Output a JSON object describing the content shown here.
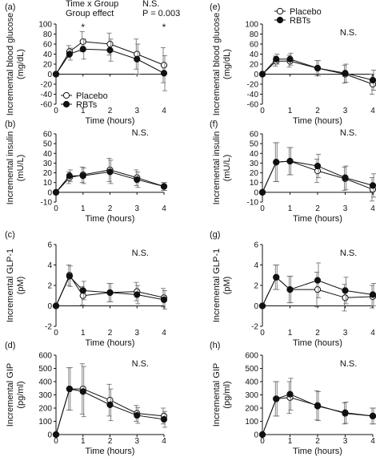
{
  "chart_data": [
    {
      "type": "line",
      "panel_label": "(a)",
      "ylabel": "Incremental blood glucose (mg/dL)",
      "xlabel": "Time (hours)",
      "ylim": [
        -60,
        100
      ],
      "yticks": [
        -60,
        -40,
        -20,
        0,
        20,
        40,
        60,
        80,
        100
      ],
      "xlim": [
        0,
        4
      ],
      "xticks": [
        0,
        1,
        2,
        3,
        4
      ],
      "x": [
        0,
        0.5,
        1,
        2,
        3,
        4
      ],
      "series": [
        {
          "name": "Placebo",
          "marker": "open-circle",
          "values": [
            0,
            45,
            65,
            60,
            40,
            18
          ],
          "errors": [
            0,
            12,
            20,
            22,
            30,
            35
          ]
        },
        {
          "name": "RBTs",
          "marker": "filled-circle",
          "values": [
            0,
            40,
            50,
            48,
            30,
            2
          ],
          "errors": [
            0,
            12,
            20,
            22,
            30,
            35
          ]
        }
      ],
      "stats": {
        "lines": [
          [
            "Time x Group",
            "N.S."
          ],
          [
            "Group effect",
            "P = 0.003"
          ]
        ]
      },
      "star_labels": [
        {
          "x": 1,
          "text": "*"
        },
        {
          "x": 4,
          "text": "*"
        }
      ],
      "legend": {
        "position": "bottom-left",
        "entries": [
          "Placebo",
          "RBTs"
        ]
      }
    },
    {
      "type": "line",
      "panel_label": "(b)",
      "ylabel": "Incremental insulin (mU/L)",
      "xlabel": "Time (hours)",
      "ylim": [
        -10,
        60
      ],
      "yticks": [
        -10,
        0,
        10,
        20,
        30,
        40,
        50,
        60
      ],
      "xlim": [
        0,
        4
      ],
      "xticks": [
        0,
        1,
        2,
        3,
        4
      ],
      "x": [
        0,
        0.5,
        1,
        2,
        3,
        4
      ],
      "series": [
        {
          "name": "Placebo",
          "marker": "open-circle",
          "values": [
            0,
            15,
            18,
            23,
            15,
            6
          ],
          "errors": [
            0,
            6,
            8,
            12,
            8,
            4
          ]
        },
        {
          "name": "RBTs",
          "marker": "filled-circle",
          "values": [
            0,
            17,
            17,
            21,
            13,
            6
          ],
          "errors": [
            0,
            6,
            8,
            12,
            8,
            4
          ]
        }
      ],
      "annotation": "N.S."
    },
    {
      "type": "line",
      "panel_label": "(c)",
      "ylabel": "Incremental GLP-1 (pM)",
      "xlabel": "Time (hours)",
      "ylim": [
        -2,
        6
      ],
      "yticks": [
        -2,
        0,
        2,
        4,
        6
      ],
      "xlim": [
        0,
        4
      ],
      "xticks": [
        0,
        1,
        2,
        3,
        4
      ],
      "x": [
        0,
        0.5,
        1,
        2,
        3,
        4
      ],
      "series": [
        {
          "name": "Placebo",
          "marker": "open-circle",
          "values": [
            0,
            3.0,
            1.0,
            1.3,
            1.4,
            0.8
          ],
          "errors": [
            0,
            1.0,
            0.9,
            0.9,
            0.9,
            0.9
          ]
        },
        {
          "name": "RBTs",
          "marker": "filled-circle",
          "values": [
            0,
            2.9,
            1.5,
            1.3,
            1.1,
            0.6
          ],
          "errors": [
            0,
            1.0,
            0.9,
            0.9,
            0.9,
            0.9
          ]
        }
      ],
      "annotation": "N.S."
    },
    {
      "type": "line",
      "panel_label": "(d)",
      "ylabel": "Incremental GIP (pg/ml)",
      "xlabel": "Time (hours)",
      "ylim": [
        0,
        600
      ],
      "yticks": [
        0,
        100,
        200,
        300,
        400,
        500,
        600
      ],
      "xlim": [
        0,
        4
      ],
      "xticks": [
        0,
        1,
        2,
        3,
        4
      ],
      "x": [
        0,
        0.5,
        1,
        2,
        3,
        4
      ],
      "series": [
        {
          "name": "Placebo",
          "marker": "open-circle",
          "values": [
            0,
            345,
            345,
            260,
            160,
            140
          ],
          "errors": [
            0,
            160,
            190,
            120,
            60,
            60
          ]
        },
        {
          "name": "RBTs",
          "marker": "filled-circle",
          "values": [
            0,
            345,
            325,
            225,
            145,
            115
          ],
          "errors": [
            0,
            160,
            190,
            120,
            60,
            60
          ]
        }
      ],
      "annotation": "N.S."
    },
    {
      "type": "line",
      "panel_label": "(e)",
      "ylabel": "Incremental blood glucose (mg/dL)",
      "xlabel": "Time (hours)",
      "ylim": [
        -60,
        100
      ],
      "yticks": [
        -60,
        -40,
        -20,
        0,
        20,
        40,
        60,
        80,
        100
      ],
      "xlim": [
        0,
        4
      ],
      "xticks": [
        0,
        1,
        2,
        3,
        4
      ],
      "x": [
        0,
        0.5,
        1,
        2,
        3,
        4
      ],
      "series": [
        {
          "name": "Placebo",
          "marker": "open-circle",
          "values": [
            0,
            26,
            26,
            12,
            0,
            -20
          ],
          "errors": [
            0,
            10,
            12,
            15,
            18,
            20
          ]
        },
        {
          "name": "RBTs",
          "marker": "filled-circle",
          "values": [
            0,
            30,
            30,
            12,
            2,
            -12
          ],
          "errors": [
            0,
            10,
            12,
            15,
            18,
            20
          ]
        }
      ],
      "annotation": "N.S.",
      "legend": {
        "position": "top-left",
        "entries": [
          "Placebo",
          "RBTs"
        ]
      }
    },
    {
      "type": "line",
      "panel_label": "(f)",
      "ylabel": "Incremental insulin (mU/L)",
      "xlabel": "Time (hours)",
      "ylim": [
        -10,
        60
      ],
      "yticks": [
        -10,
        0,
        10,
        20,
        30,
        40,
        50,
        60
      ],
      "xlim": [
        0,
        4
      ],
      "xticks": [
        0,
        1,
        2,
        3,
        4
      ],
      "x": [
        0,
        0.5,
        1,
        2,
        3,
        4
      ],
      "series": [
        {
          "name": "Placebo",
          "marker": "open-circle",
          "values": [
            0,
            31,
            32,
            22,
            14,
            3
          ],
          "errors": [
            0,
            20,
            14,
            12,
            12,
            12
          ]
        },
        {
          "name": "RBTs",
          "marker": "filled-circle",
          "values": [
            0,
            31,
            32,
            27,
            15,
            7
          ],
          "errors": [
            0,
            20,
            14,
            12,
            12,
            12
          ]
        }
      ],
      "annotation": "N.S."
    },
    {
      "type": "line",
      "panel_label": "(g)",
      "ylabel": "Incremental GLP-1 (pM)",
      "xlabel": "Time (hours)",
      "ylim": [
        -2,
        6
      ],
      "yticks": [
        -2,
        0,
        2,
        4,
        6
      ],
      "xlim": [
        0,
        4
      ],
      "xticks": [
        0,
        1,
        2,
        3,
        4
      ],
      "x": [
        0,
        0.5,
        1,
        2,
        3,
        4
      ],
      "series": [
        {
          "name": "Placebo",
          "marker": "open-circle",
          "values": [
            0,
            2.8,
            1.6,
            1.6,
            0.8,
            0.9
          ],
          "errors": [
            0,
            1.2,
            1.3,
            1.7,
            1.3,
            1.1
          ]
        },
        {
          "name": "RBTs",
          "marker": "filled-circle",
          "values": [
            0,
            2.8,
            1.6,
            2.5,
            1.5,
            1.1
          ],
          "errors": [
            0,
            1.2,
            1.3,
            1.7,
            1.3,
            1.1
          ]
        }
      ],
      "annotation": "N.S."
    },
    {
      "type": "line",
      "panel_label": "(h)",
      "ylabel": "Incremental GIP (pg/ml)",
      "xlabel": "Time (hours)",
      "ylim": [
        0,
        600
      ],
      "yticks": [
        0,
        100,
        200,
        300,
        400,
        500,
        600
      ],
      "xlim": [
        0,
        4
      ],
      "xticks": [
        0,
        1,
        2,
        3,
        4
      ],
      "x": [
        0,
        0.5,
        1,
        2,
        3,
        4
      ],
      "series": [
        {
          "name": "Placebo",
          "marker": "open-circle",
          "values": [
            0,
            270,
            280,
            220,
            160,
            140
          ],
          "errors": [
            0,
            130,
            120,
            110,
            80,
            60
          ]
        },
        {
          "name": "RBTs",
          "marker": "filled-circle",
          "values": [
            0,
            270,
            305,
            215,
            165,
            140
          ],
          "errors": [
            0,
            130,
            120,
            110,
            80,
            60
          ]
        }
      ],
      "annotation": "N.S."
    }
  ]
}
